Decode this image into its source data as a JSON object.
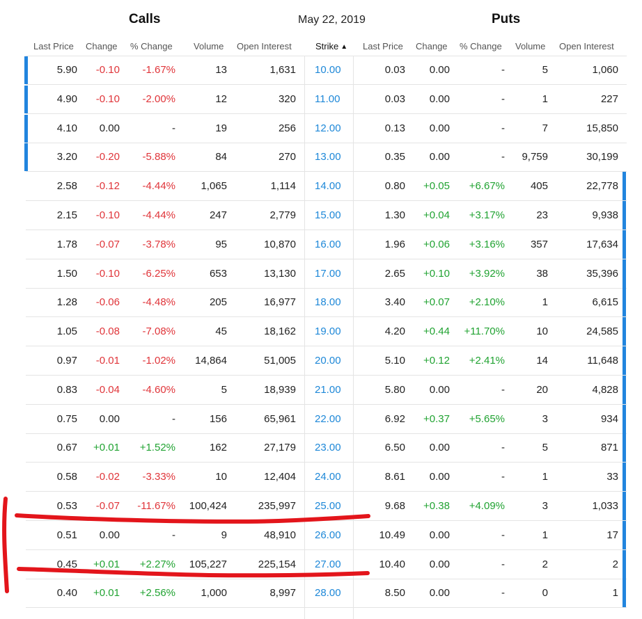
{
  "header": {
    "calls": "Calls",
    "date": "May 22, 2019",
    "puts": "Puts"
  },
  "columns": {
    "call_last": "Last Price",
    "call_change": "Change",
    "call_pct": "% Change",
    "call_volume": "Volume",
    "call_oi": "Open Interest",
    "strike": "Strike",
    "put_last": "Last Price",
    "put_change": "Change",
    "put_pct": "% Change",
    "put_volume": "Volume",
    "put_oi": "Open Interest"
  },
  "sort_indicator": "chevron-up",
  "rows": [
    {
      "call_last": "5.90",
      "call_change": "-0.10",
      "call_pct": "-1.67%",
      "call_volume": "13",
      "call_oi": "1,631",
      "strike": "10.00",
      "put_last": "0.03",
      "put_change": "0.00",
      "put_pct": "-",
      "put_volume": "5",
      "put_oi": "1,060",
      "call_itm": true,
      "put_itm": false
    },
    {
      "call_last": "4.90",
      "call_change": "-0.10",
      "call_pct": "-2.00%",
      "call_volume": "12",
      "call_oi": "320",
      "strike": "11.00",
      "put_last": "0.03",
      "put_change": "0.00",
      "put_pct": "-",
      "put_volume": "1",
      "put_oi": "227",
      "call_itm": true,
      "put_itm": false
    },
    {
      "call_last": "4.10",
      "call_change": "0.00",
      "call_pct": "-",
      "call_volume": "19",
      "call_oi": "256",
      "strike": "12.00",
      "put_last": "0.13",
      "put_change": "0.00",
      "put_pct": "-",
      "put_volume": "7",
      "put_oi": "15,850",
      "call_itm": true,
      "put_itm": false
    },
    {
      "call_last": "3.20",
      "call_change": "-0.20",
      "call_pct": "-5.88%",
      "call_volume": "84",
      "call_oi": "270",
      "strike": "13.00",
      "put_last": "0.35",
      "put_change": "0.00",
      "put_pct": "-",
      "put_volume": "9,759",
      "put_oi": "30,199",
      "call_itm": true,
      "put_itm": false
    },
    {
      "call_last": "2.58",
      "call_change": "-0.12",
      "call_pct": "-4.44%",
      "call_volume": "1,065",
      "call_oi": "1,114",
      "strike": "14.00",
      "put_last": "0.80",
      "put_change": "+0.05",
      "put_pct": "+6.67%",
      "put_volume": "405",
      "put_oi": "22,778",
      "call_itm": false,
      "put_itm": true
    },
    {
      "call_last": "2.15",
      "call_change": "-0.10",
      "call_pct": "-4.44%",
      "call_volume": "247",
      "call_oi": "2,779",
      "strike": "15.00",
      "put_last": "1.30",
      "put_change": "+0.04",
      "put_pct": "+3.17%",
      "put_volume": "23",
      "put_oi": "9,938",
      "call_itm": false,
      "put_itm": true
    },
    {
      "call_last": "1.78",
      "call_change": "-0.07",
      "call_pct": "-3.78%",
      "call_volume": "95",
      "call_oi": "10,870",
      "strike": "16.00",
      "put_last": "1.96",
      "put_change": "+0.06",
      "put_pct": "+3.16%",
      "put_volume": "357",
      "put_oi": "17,634",
      "call_itm": false,
      "put_itm": true
    },
    {
      "call_last": "1.50",
      "call_change": "-0.10",
      "call_pct": "-6.25%",
      "call_volume": "653",
      "call_oi": "13,130",
      "strike": "17.00",
      "put_last": "2.65",
      "put_change": "+0.10",
      "put_pct": "+3.92%",
      "put_volume": "38",
      "put_oi": "35,396",
      "call_itm": false,
      "put_itm": true
    },
    {
      "call_last": "1.28",
      "call_change": "-0.06",
      "call_pct": "-4.48%",
      "call_volume": "205",
      "call_oi": "16,977",
      "strike": "18.00",
      "put_last": "3.40",
      "put_change": "+0.07",
      "put_pct": "+2.10%",
      "put_volume": "1",
      "put_oi": "6,615",
      "call_itm": false,
      "put_itm": true
    },
    {
      "call_last": "1.05",
      "call_change": "-0.08",
      "call_pct": "-7.08%",
      "call_volume": "45",
      "call_oi": "18,162",
      "strike": "19.00",
      "put_last": "4.20",
      "put_change": "+0.44",
      "put_pct": "+11.70%",
      "put_volume": "10",
      "put_oi": "24,585",
      "call_itm": false,
      "put_itm": true
    },
    {
      "call_last": "0.97",
      "call_change": "-0.01",
      "call_pct": "-1.02%",
      "call_volume": "14,864",
      "call_oi": "51,005",
      "strike": "20.00",
      "put_last": "5.10",
      "put_change": "+0.12",
      "put_pct": "+2.41%",
      "put_volume": "14",
      "put_oi": "11,648",
      "call_itm": false,
      "put_itm": true
    },
    {
      "call_last": "0.83",
      "call_change": "-0.04",
      "call_pct": "-4.60%",
      "call_volume": "5",
      "call_oi": "18,939",
      "strike": "21.00",
      "put_last": "5.80",
      "put_change": "0.00",
      "put_pct": "-",
      "put_volume": "20",
      "put_oi": "4,828",
      "call_itm": false,
      "put_itm": true
    },
    {
      "call_last": "0.75",
      "call_change": "0.00",
      "call_pct": "-",
      "call_volume": "156",
      "call_oi": "65,961",
      "strike": "22.00",
      "put_last": "6.92",
      "put_change": "+0.37",
      "put_pct": "+5.65%",
      "put_volume": "3",
      "put_oi": "934",
      "call_itm": false,
      "put_itm": true
    },
    {
      "call_last": "0.67",
      "call_change": "+0.01",
      "call_pct": "+1.52%",
      "call_volume": "162",
      "call_oi": "27,179",
      "strike": "23.00",
      "put_last": "6.50",
      "put_change": "0.00",
      "put_pct": "-",
      "put_volume": "5",
      "put_oi": "871",
      "call_itm": false,
      "put_itm": true
    },
    {
      "call_last": "0.58",
      "call_change": "-0.02",
      "call_pct": "-3.33%",
      "call_volume": "10",
      "call_oi": "12,404",
      "strike": "24.00",
      "put_last": "8.61",
      "put_change": "0.00",
      "put_pct": "-",
      "put_volume": "1",
      "put_oi": "33",
      "call_itm": false,
      "put_itm": true
    },
    {
      "call_last": "0.53",
      "call_change": "-0.07",
      "call_pct": "-11.67%",
      "call_volume": "100,424",
      "call_oi": "235,997",
      "strike": "25.00",
      "put_last": "9.68",
      "put_change": "+0.38",
      "put_pct": "+4.09%",
      "put_volume": "3",
      "put_oi": "1,033",
      "call_itm": false,
      "put_itm": true
    },
    {
      "call_last": "0.51",
      "call_change": "0.00",
      "call_pct": "-",
      "call_volume": "9",
      "call_oi": "48,910",
      "strike": "26.00",
      "put_last": "10.49",
      "put_change": "0.00",
      "put_pct": "-",
      "put_volume": "1",
      "put_oi": "17",
      "call_itm": false,
      "put_itm": true
    },
    {
      "call_last": "0.45",
      "call_change": "+0.01",
      "call_pct": "+2.27%",
      "call_volume": "105,227",
      "call_oi": "225,154",
      "strike": "27.00",
      "put_last": "10.40",
      "put_change": "0.00",
      "put_pct": "-",
      "put_volume": "2",
      "put_oi": "2",
      "call_itm": false,
      "put_itm": true
    },
    {
      "call_last": "0.40",
      "call_change": "+0.01",
      "call_pct": "+2.56%",
      "call_volume": "1,000",
      "call_oi": "8,997",
      "strike": "28.00",
      "put_last": "8.50",
      "put_change": "0.00",
      "put_pct": "-",
      "put_volume": "0",
      "put_oi": "1",
      "call_itm": false,
      "put_itm": true
    }
  ],
  "colors": {
    "negative": "#e0353a",
    "positive": "#21a332",
    "strike": "#1e88d8",
    "itm_bar": "#2285de",
    "annotation": "#e3151b"
  }
}
